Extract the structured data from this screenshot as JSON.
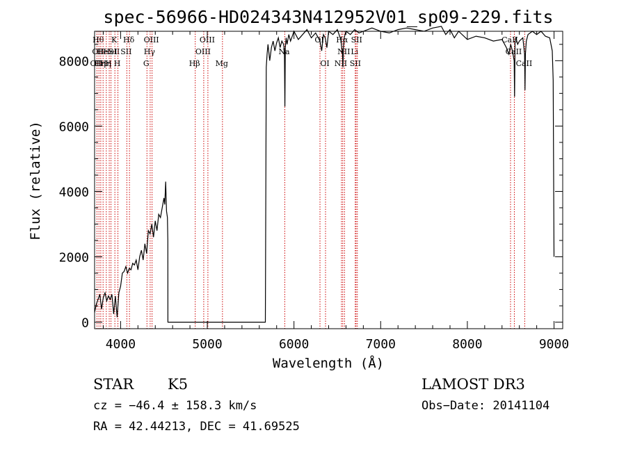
{
  "chart_data": {
    "type": "line",
    "title": "spec-56966-HD024343N412952V01_sp09-229.fits",
    "xlabel": "Wavelength (Å)",
    "ylabel": "Flux (relative)",
    "xlim": [
      3700,
      9100
    ],
    "ylim": [
      -200,
      8900
    ],
    "xticks": [
      4000,
      5000,
      6000,
      7000,
      8000,
      9000
    ],
    "xtick_labels": [
      "4000",
      "5000",
      "6000",
      "7000",
      "8000",
      "9000"
    ],
    "yticks": [
      0,
      2000,
      4000,
      6000,
      8000
    ],
    "ytick_labels": [
      "0",
      "2000",
      "4000",
      "6000",
      "8000"
    ],
    "grid": false,
    "series": [
      {
        "x": [
          3700,
          3720,
          3740,
          3760,
          3780,
          3800,
          3820,
          3840,
          3860,
          3880,
          3900,
          3920,
          3940,
          3960,
          3980,
          4000,
          4020,
          4040,
          4060,
          4080,
          4100,
          4120,
          4140,
          4160,
          4180,
          4200,
          4220,
          4240,
          4260,
          4280,
          4300,
          4320,
          4340,
          4360,
          4380,
          4400,
          4420,
          4440,
          4460,
          4480,
          4500,
          4510,
          4520,
          4530,
          4540,
          4545,
          4546,
          5670,
          5680,
          5690,
          5700,
          5720,
          5740,
          5760,
          5780,
          5800,
          5820,
          5840,
          5860,
          5880,
          5890,
          5895,
          5900,
          5910,
          5920,
          5940,
          5960,
          5980,
          6000,
          6050,
          6100,
          6150,
          6200,
          6250,
          6300,
          6320,
          6340,
          6360,
          6380,
          6400,
          6450,
          6500,
          6540,
          6560,
          6565,
          6570,
          6580,
          6600,
          6650,
          6700,
          6750,
          6800,
          6900,
          7000,
          7100,
          7200,
          7300,
          7400,
          7500,
          7600,
          7700,
          7750,
          7800,
          7850,
          7900,
          8000,
          8100,
          8200,
          8300,
          8400,
          8450,
          8480,
          8500,
          8520,
          8540,
          8545,
          8550,
          8560,
          8580,
          8600,
          8640,
          8660,
          8665,
          8670,
          8680,
          8700,
          8750,
          8800,
          8850,
          8900,
          8950,
          8980,
          8990,
          9000
        ],
        "y": [
          300,
          550,
          700,
          850,
          400,
          750,
          900,
          650,
          800,
          700,
          850,
          250,
          800,
          150,
          900,
          1100,
          1500,
          1550,
          1700,
          1500,
          1650,
          1600,
          1800,
          1750,
          1900,
          1600,
          2000,
          2200,
          1900,
          2400,
          2100,
          2800,
          2700,
          3000,
          2600,
          3100,
          2800,
          3300,
          3200,
          3500,
          3800,
          3600,
          4300,
          3400,
          3200,
          2500,
          0,
          0,
          7800,
          8200,
          8500,
          8000,
          8400,
          8600,
          8300,
          8550,
          8700,
          8400,
          8600,
          8500,
          8300,
          6600,
          8400,
          8700,
          8500,
          8800,
          8600,
          8750,
          8900,
          8650,
          8800,
          8950,
          8700,
          8850,
          8600,
          8300,
          8800,
          8700,
          8400,
          8900,
          8800,
          8950,
          8650,
          8200,
          7800,
          8400,
          8700,
          8900,
          8800,
          8950,
          8850,
          8900,
          9000,
          8900,
          8850,
          8950,
          9000,
          8950,
          8900,
          9000,
          9050,
          8800,
          8950,
          8700,
          8900,
          8650,
          8750,
          8700,
          8600,
          8650,
          8400,
          8200,
          8500,
          8300,
          8000,
          6900,
          8600,
          8700,
          8500,
          8600,
          8700,
          8200,
          7100,
          8200,
          8600,
          8800,
          8900,
          8800,
          8900,
          8750,
          8700,
          8300,
          7400,
          2000
        ]
      }
    ],
    "annotation_lines": [
      {
        "x": 3727,
        "labels": [
          {
            "text": "OII",
            "row": 3
          }
        ]
      },
      {
        "x": 3750,
        "labels": [
          {
            "text": "Hθ",
            "row": 1
          },
          {
            "text": "OII",
            "row": 2
          }
        ]
      },
      {
        "x": 3771,
        "labels": [
          {
            "text": "Hη",
            "row": 3
          }
        ]
      },
      {
        "x": 3798,
        "labels": [
          {
            "text": "He",
            "row": 2
          }
        ]
      },
      {
        "x": 3835,
        "labels": [
          {
            "text": "Hη",
            "row": 3
          }
        ]
      },
      {
        "x": 3869,
        "labels": [
          {
            "text": "H",
            "row": 3
          }
        ]
      },
      {
        "x": 3889,
        "labels": [
          {
            "text": "HeI",
            "row": 2
          }
        ]
      },
      {
        "x": 3934,
        "labels": [
          {
            "text": "K",
            "row": 1
          },
          {
            "text": "SII",
            "row": 2
          }
        ]
      },
      {
        "x": 3969,
        "labels": [
          {
            "text": "H",
            "row": 3
          }
        ]
      },
      {
        "x": 4072,
        "labels": [
          {
            "text": "SII",
            "row": 2
          }
        ]
      },
      {
        "x": 4102,
        "labels": [
          {
            "text": "Hδ",
            "row": 1
          }
        ]
      },
      {
        "x": 4304,
        "labels": [
          {
            "text": "G",
            "row": 3
          }
        ]
      },
      {
        "x": 4341,
        "labels": [
          {
            "text": "Hγ",
            "row": 2
          }
        ]
      },
      {
        "x": 4363,
        "labels": [
          {
            "text": "OIII",
            "row": 1
          }
        ]
      },
      {
        "x": 4861,
        "labels": [
          {
            "text": "Hβ",
            "row": 3
          }
        ]
      },
      {
        "x": 4959,
        "labels": [
          {
            "text": "OIII",
            "row": 2
          }
        ]
      },
      {
        "x": 5007,
        "labels": [
          {
            "text": "OIII",
            "row": 1
          }
        ]
      },
      {
        "x": 5175,
        "labels": [
          {
            "text": "Mg",
            "row": 3
          }
        ]
      },
      {
        "x": 5894,
        "labels": [
          {
            "text": "Na",
            "row": 2
          }
        ]
      },
      {
        "x": 6300,
        "labels": [
          {
            "text": "OI",
            "row": 1
          }
        ]
      },
      {
        "x": 6364,
        "labels": [
          {
            "text": "OI",
            "row": 3
          }
        ]
      },
      {
        "x": 6548,
        "labels": [
          {
            "text": "NII",
            "row": 3
          }
        ]
      },
      {
        "x": 6563,
        "labels": [
          {
            "text": "Hα",
            "row": 1
          }
        ]
      },
      {
        "x": 6583,
        "labels": [
          {
            "text": "NII",
            "row": 2
          }
        ]
      },
      {
        "x": 6707,
        "labels": [
          {
            "text": "Li",
            "row": 2
          }
        ]
      },
      {
        "x": 6716,
        "labels": [
          {
            "text": "SII",
            "row": 3
          }
        ]
      },
      {
        "x": 6731,
        "labels": [
          {
            "text": "SII",
            "row": 1
          }
        ]
      },
      {
        "x": 8498,
        "labels": [
          {
            "text": "CaII",
            "row": 1
          }
        ]
      },
      {
        "x": 8542,
        "labels": [
          {
            "text": "CaII",
            "row": 2
          }
        ]
      },
      {
        "x": 8662,
        "labels": [
          {
            "text": "CaII",
            "row": 3
          }
        ]
      }
    ],
    "annotation_color": "#cc0000"
  },
  "info": {
    "object_class": "STAR",
    "subclass": "K5",
    "survey": "LAMOST DR3",
    "redshift_line": "cz = −46.4 ± 158.3 km/s",
    "obs_date_line": "Obs−Date: 20141104",
    "coords_line": "RA =  42.44213, DEC =  41.69525"
  }
}
